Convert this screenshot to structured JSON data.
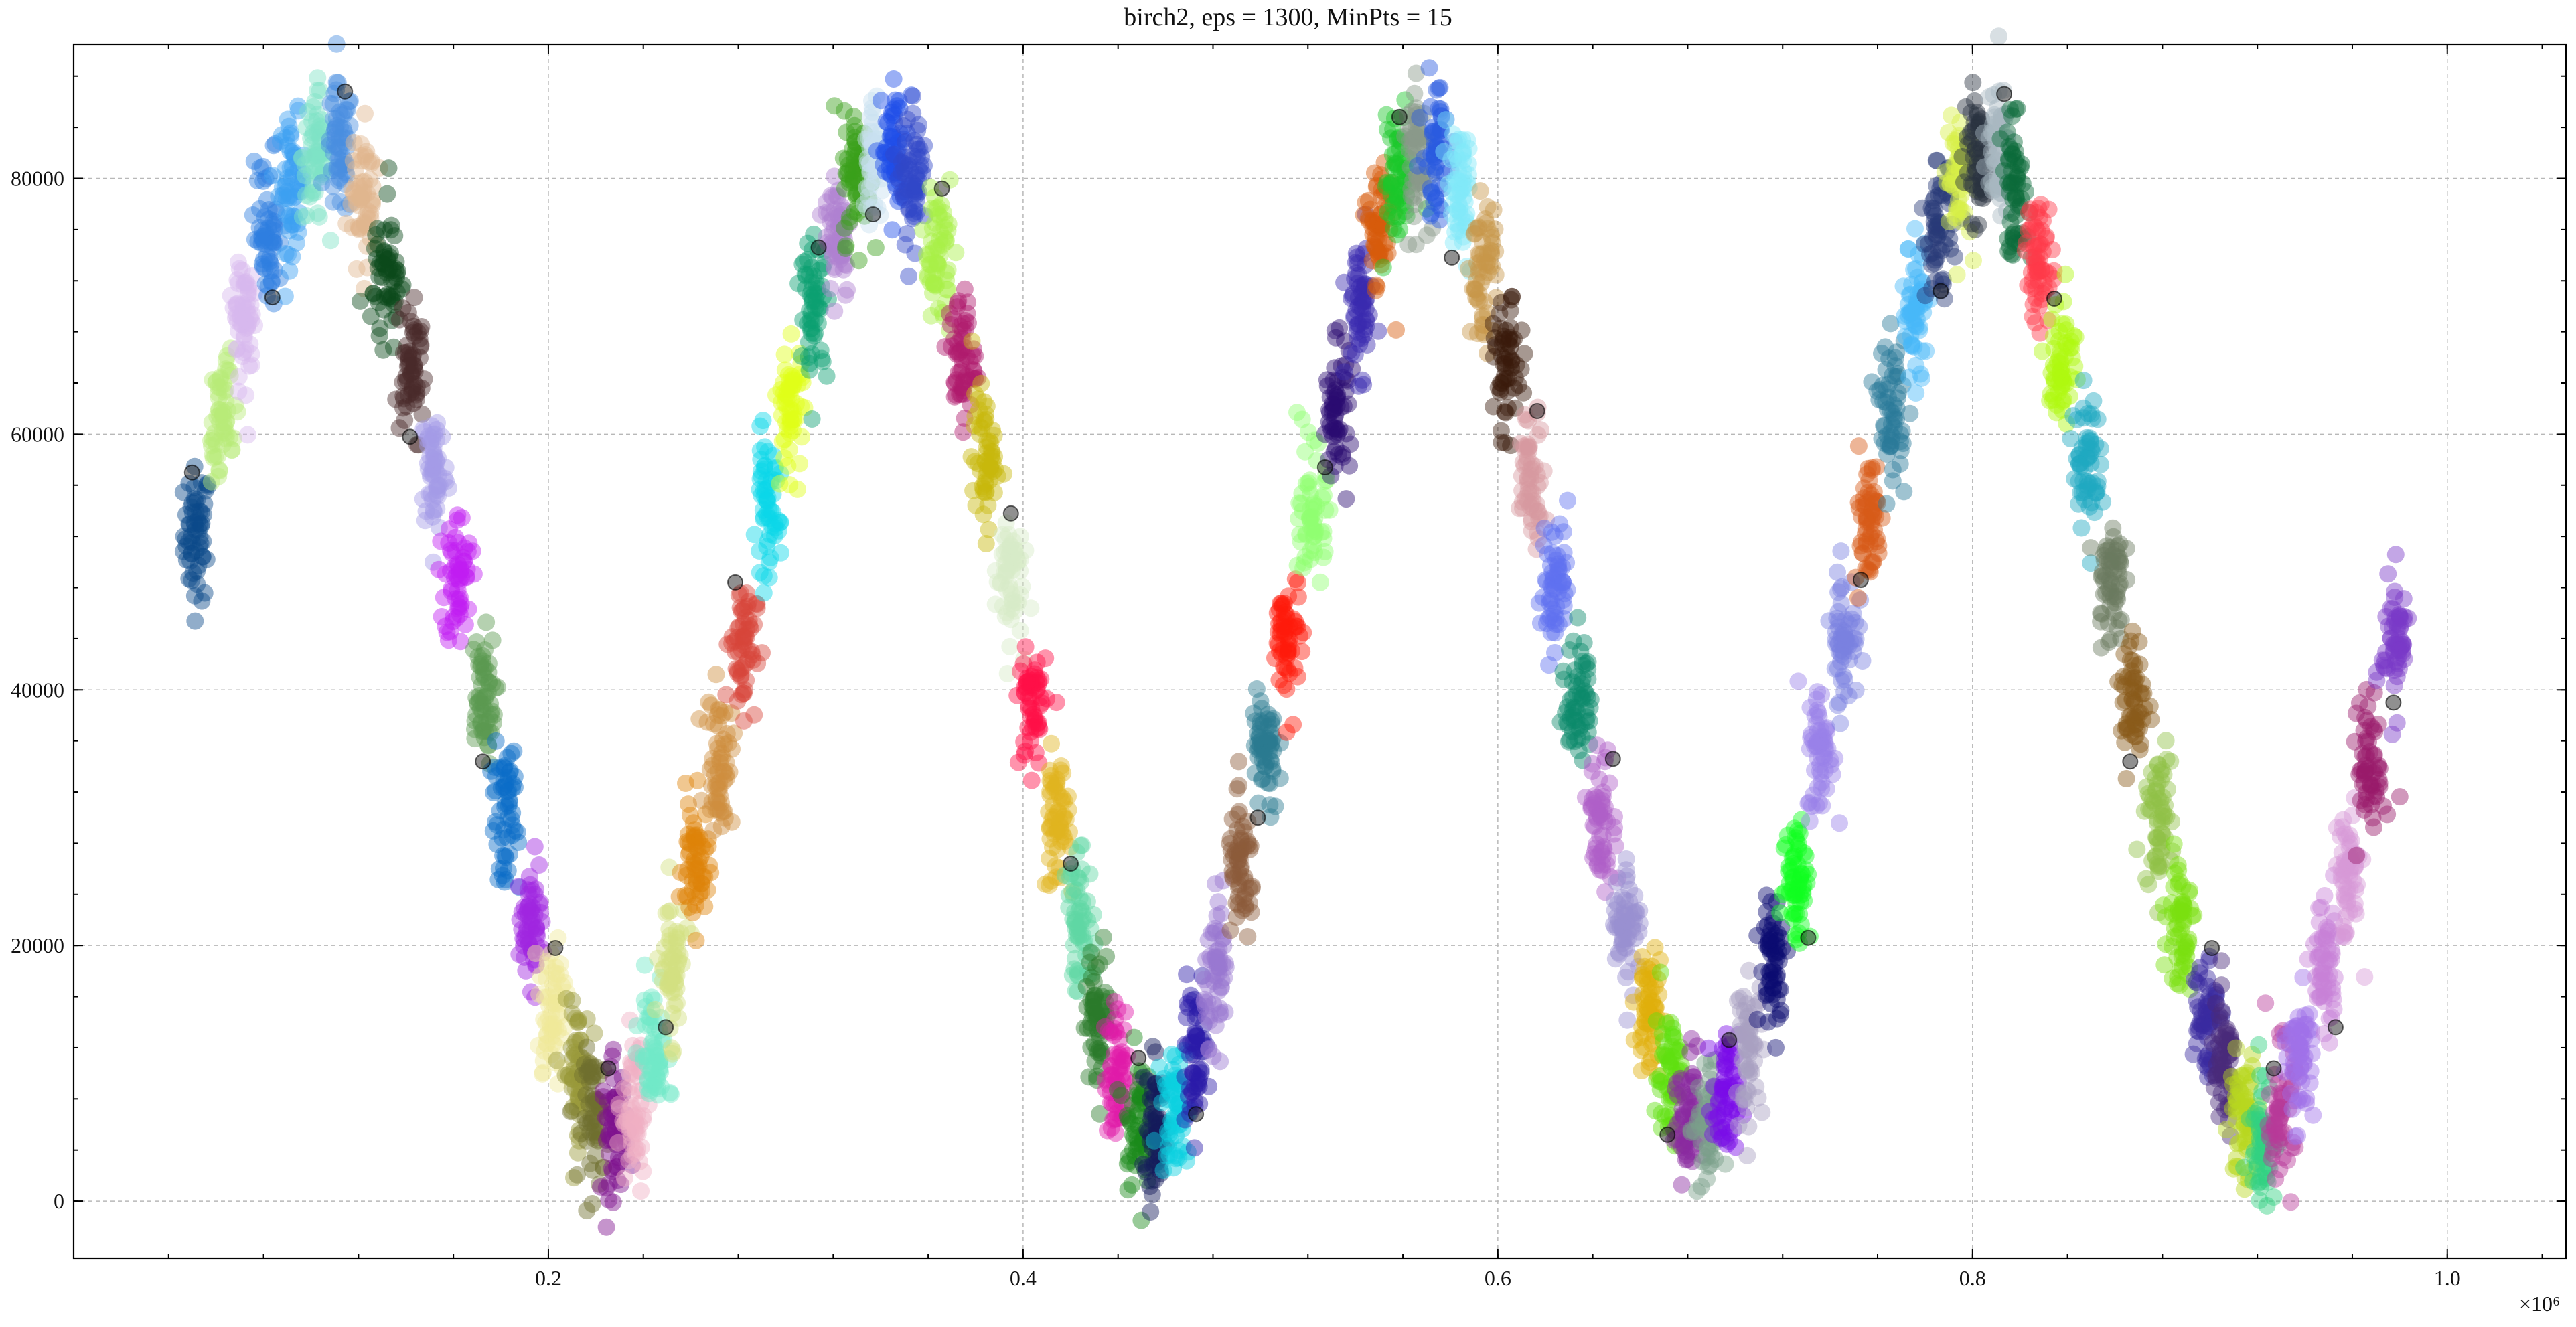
{
  "chart_data": {
    "type": "scatter",
    "title": "birch2, eps = 1300, MinPts = 15",
    "xlabel": "",
    "ylabel": "",
    "x_multiplier_label": "×10⁶",
    "x_scale": 1000000,
    "xlim": [
      0.0,
      1.05
    ],
    "ylim": [
      -4500,
      90500
    ],
    "x_ticks": [
      0.2,
      0.4,
      0.6,
      0.8,
      1.0
    ],
    "x_tick_labels": [
      "0.2",
      "0.4",
      "0.6",
      "0.8",
      "1.0"
    ],
    "y_ticks": [
      0,
      20000,
      40000,
      60000,
      80000
    ],
    "y_tick_labels": [
      "0",
      "20000",
      "40000",
      "60000",
      "80000"
    ],
    "grid": true,
    "legend": "none",
    "point_alpha": 0.45,
    "wave": {
      "x_start": 0.05,
      "x_end": 1.0,
      "amplitude": 40000,
      "offset": 44000,
      "period": 0.25,
      "phase_x": 0.05
    },
    "noise_color": "#555555",
    "clusters": [
      {
        "x": 0.052,
        "y": 52200,
        "color": "#0b4a8a"
      },
      {
        "x": 0.062,
        "y": 61200,
        "color": "#b8ec78"
      },
      {
        "x": 0.072,
        "y": 69000,
        "color": "#d7b8ee"
      },
      {
        "x": 0.082,
        "y": 75500,
        "color": "#2f7fe0"
      },
      {
        "x": 0.092,
        "y": 79600,
        "color": "#3ba0f2"
      },
      {
        "x": 0.102,
        "y": 81800,
        "color": "#7fe3c6"
      },
      {
        "x": 0.112,
        "y": 82000,
        "color": "#4a8fe0"
      },
      {
        "x": 0.122,
        "y": 78800,
        "color": "#dfb58e"
      },
      {
        "x": 0.132,
        "y": 72600,
        "color": "#0a4a1a"
      },
      {
        "x": 0.142,
        "y": 64600,
        "color": "#4a2a2a"
      },
      {
        "x": 0.152,
        "y": 57400,
        "color": "#a49ce6"
      },
      {
        "x": 0.162,
        "y": 48800,
        "color": "#c21cf2"
      },
      {
        "x": 0.172,
        "y": 39200,
        "color": "#5a9a50"
      },
      {
        "x": 0.182,
        "y": 30200,
        "color": "#0a6cc8"
      },
      {
        "x": 0.192,
        "y": 21800,
        "color": "#a026e0"
      },
      {
        "x": 0.202,
        "y": 15000,
        "color": "#f0e898"
      },
      {
        "x": 0.212,
        "y": 10000,
        "color": "#9a9a3a"
      },
      {
        "x": 0.22,
        "y": 6600,
        "color": "#6e6e2e"
      },
      {
        "x": 0.228,
        "y": 5600,
        "color": "#7e128e"
      },
      {
        "x": 0.236,
        "y": 7000,
        "color": "#f0b0c4"
      },
      {
        "x": 0.244,
        "y": 11400,
        "color": "#72e8c8"
      },
      {
        "x": 0.252,
        "y": 18400,
        "color": "#d2e080"
      },
      {
        "x": 0.262,
        "y": 26200,
        "color": "#de8208"
      },
      {
        "x": 0.272,
        "y": 34400,
        "color": "#cf8e3e"
      },
      {
        "x": 0.282,
        "y": 43600,
        "color": "#d8443a"
      },
      {
        "x": 0.292,
        "y": 53800,
        "color": "#0ad8e8"
      },
      {
        "x": 0.302,
        "y": 62400,
        "color": "#e0ff18"
      },
      {
        "x": 0.312,
        "y": 69800,
        "color": "#0aa070"
      },
      {
        "x": 0.322,
        "y": 75800,
        "color": "#b080d0"
      },
      {
        "x": 0.33,
        "y": 80200,
        "color": "#3aa01a"
      },
      {
        "x": 0.338,
        "y": 82000,
        "color": "#c8e0f0"
      },
      {
        "x": 0.346,
        "y": 82000,
        "color": "#1e4ee8"
      },
      {
        "x": 0.354,
        "y": 79600,
        "color": "#3046c8"
      },
      {
        "x": 0.364,
        "y": 74400,
        "color": "#a8f048"
      },
      {
        "x": 0.374,
        "y": 66000,
        "color": "#b01a6c"
      },
      {
        "x": 0.384,
        "y": 58000,
        "color": "#c8b80a"
      },
      {
        "x": 0.394,
        "y": 49000,
        "color": "#d8ecc8"
      },
      {
        "x": 0.404,
        "y": 38800,
        "color": "#ff1048"
      },
      {
        "x": 0.414,
        "y": 29600,
        "color": "#e0b420"
      },
      {
        "x": 0.424,
        "y": 21600,
        "color": "#60d8a4"
      },
      {
        "x": 0.432,
        "y": 14800,
        "color": "#2a7a2a"
      },
      {
        "x": 0.44,
        "y": 10000,
        "color": "#e01aa8"
      },
      {
        "x": 0.448,
        "y": 6400,
        "color": "#1a8a1a"
      },
      {
        "x": 0.456,
        "y": 5400,
        "color": "#141a5a"
      },
      {
        "x": 0.464,
        "y": 7200,
        "color": "#0ad0e0"
      },
      {
        "x": 0.472,
        "y": 11600,
        "color": "#2a1aa8"
      },
      {
        "x": 0.482,
        "y": 18000,
        "color": "#9a78d0"
      },
      {
        "x": 0.492,
        "y": 25800,
        "color": "#8c5a3a"
      },
      {
        "x": 0.502,
        "y": 34800,
        "color": "#2a7a90"
      },
      {
        "x": 0.512,
        "y": 43800,
        "color": "#ff1a0a"
      },
      {
        "x": 0.522,
        "y": 53400,
        "color": "#90ff70"
      },
      {
        "x": 0.532,
        "y": 62200,
        "color": "#2a0a70"
      },
      {
        "x": 0.542,
        "y": 70000,
        "color": "#3a2ab0"
      },
      {
        "x": 0.55,
        "y": 76000,
        "color": "#d85a0a"
      },
      {
        "x": 0.558,
        "y": 80000,
        "color": "#1ac82a"
      },
      {
        "x": 0.566,
        "y": 82000,
        "color": "#8a9a8a"
      },
      {
        "x": 0.574,
        "y": 82000,
        "color": "#2a5ae0"
      },
      {
        "x": 0.584,
        "y": 78600,
        "color": "#80e8f8"
      },
      {
        "x": 0.594,
        "y": 72600,
        "color": "#c8964a"
      },
      {
        "x": 0.604,
        "y": 65000,
        "color": "#3a1a0a"
      },
      {
        "x": 0.614,
        "y": 57000,
        "color": "#d89aa0"
      },
      {
        "x": 0.624,
        "y": 48600,
        "color": "#6070f0"
      },
      {
        "x": 0.634,
        "y": 39200,
        "color": "#0a8a6a"
      },
      {
        "x": 0.644,
        "y": 29800,
        "color": "#b060c8"
      },
      {
        "x": 0.654,
        "y": 21800,
        "color": "#9a90d0"
      },
      {
        "x": 0.664,
        "y": 14800,
        "color": "#e0b00a"
      },
      {
        "x": 0.672,
        "y": 10000,
        "color": "#60e010"
      },
      {
        "x": 0.68,
        "y": 6400,
        "color": "#8a2aa0"
      },
      {
        "x": 0.688,
        "y": 5600,
        "color": "#7aa08a"
      },
      {
        "x": 0.696,
        "y": 7800,
        "color": "#7a0ae8"
      },
      {
        "x": 0.706,
        "y": 12200,
        "color": "#a8a0c0"
      },
      {
        "x": 0.716,
        "y": 18800,
        "color": "#0a0a70"
      },
      {
        "x": 0.726,
        "y": 25400,
        "color": "#10ff20"
      },
      {
        "x": 0.736,
        "y": 35200,
        "color": "#9a80e8"
      },
      {
        "x": 0.746,
        "y": 44400,
        "color": "#7a80e0"
      },
      {
        "x": 0.756,
        "y": 53400,
        "color": "#d85a18"
      },
      {
        "x": 0.766,
        "y": 61800,
        "color": "#2a7a9a"
      },
      {
        "x": 0.776,
        "y": 69600,
        "color": "#48b8f8"
      },
      {
        "x": 0.786,
        "y": 76000,
        "color": "#283a78"
      },
      {
        "x": 0.794,
        "y": 80200,
        "color": "#d8f048"
      },
      {
        "x": 0.802,
        "y": 82000,
        "color": "#2a3440"
      },
      {
        "x": 0.81,
        "y": 81800,
        "color": "#a8b8c0"
      },
      {
        "x": 0.818,
        "y": 79200,
        "color": "#0a6a3a"
      },
      {
        "x": 0.828,
        "y": 73600,
        "color": "#ff3a4a"
      },
      {
        "x": 0.838,
        "y": 65800,
        "color": "#b0f810"
      },
      {
        "x": 0.848,
        "y": 57800,
        "color": "#20a8c0"
      },
      {
        "x": 0.858,
        "y": 48800,
        "color": "#6a7a60"
      },
      {
        "x": 0.868,
        "y": 39200,
        "color": "#8a5a1a"
      },
      {
        "x": 0.878,
        "y": 30000,
        "color": "#90c048"
      },
      {
        "x": 0.888,
        "y": 21800,
        "color": "#7ae010"
      },
      {
        "x": 0.898,
        "y": 15000,
        "color": "#3a2aa0"
      },
      {
        "x": 0.906,
        "y": 10200,
        "color": "#4a2a7a"
      },
      {
        "x": 0.914,
        "y": 6400,
        "color": "#b8d820"
      },
      {
        "x": 0.922,
        "y": 5600,
        "color": "#30d080"
      },
      {
        "x": 0.93,
        "y": 7200,
        "color": "#b83a98"
      },
      {
        "x": 0.938,
        "y": 11400,
        "color": "#a070e8"
      },
      {
        "x": 0.948,
        "y": 18400,
        "color": "#c880d8"
      },
      {
        "x": 0.958,
        "y": 25400,
        "color": "#d898d8"
      },
      {
        "x": 0.968,
        "y": 34000,
        "color": "#981a6a"
      },
      {
        "x": 0.978,
        "y": 43800,
        "color": "#7a3ac8"
      }
    ]
  }
}
